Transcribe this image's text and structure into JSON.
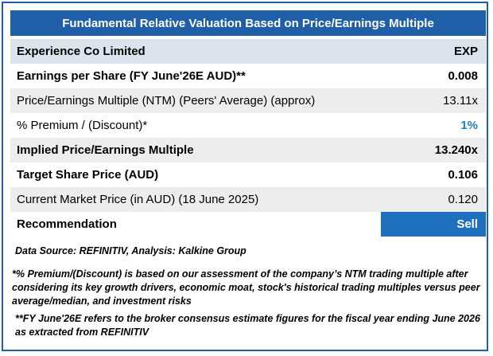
{
  "title": "Fundamental Relative Valuation Based on Price/Earnings Multiple",
  "header": {
    "company": "Experience Co Limited",
    "ticker": "EXP"
  },
  "rows": [
    {
      "label": "Earnings per Share (FY June'26E AUD)**",
      "value": "0.008"
    },
    {
      "label": "Price/Earnings Multiple (NTM)  (Peers' Average) (approx)",
      "value": "13.11x"
    },
    {
      "label": "% Premium / (Discount)*",
      "value": "1%"
    },
    {
      "label": "Implied Price/Earnings Multiple",
      "value": "13.240x"
    },
    {
      "label": "Target Share Price (AUD)",
      "value": "0.106"
    },
    {
      "label": "Current Market Price (in AUD) (18 June 2025)",
      "value": "0.120"
    },
    {
      "label": "Recommendation",
      "value": "Sell"
    }
  ],
  "source": "Data Source: REFINITIV, Analysis: Kalkine Group",
  "notes": [
    "*% Premium/(Discount) is based on our assessment of the company’s NTM trading multiple after considering its key growth drivers, economic moat, stock's historical trading multiples versus peer average/median, and investment risks",
    "**FY June'26E refers to the broker consensus estimate figures for the fiscal year ending June 2026 as extracted from REFINITIV"
  ],
  "colors": {
    "accent": "#1f5fa8",
    "highlight": "#1f7fc4",
    "reco_bg": "#1f6fbf"
  }
}
